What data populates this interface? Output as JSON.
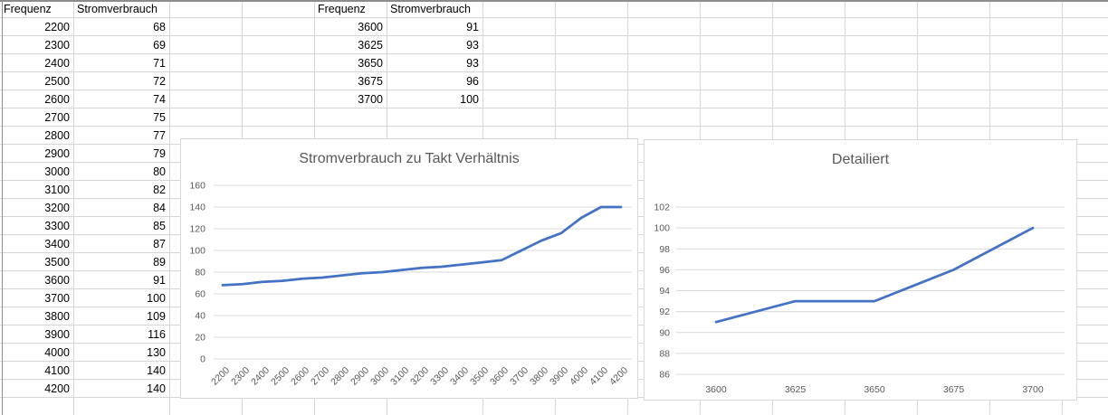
{
  "sheet": {
    "tables": [
      {
        "headers": [
          "Frequenz",
          "Stromverbrauch"
        ],
        "rows": [
          [
            2200,
            68
          ],
          [
            2300,
            69
          ],
          [
            2400,
            71
          ],
          [
            2500,
            72
          ],
          [
            2600,
            74
          ],
          [
            2700,
            75
          ],
          [
            2800,
            77
          ],
          [
            2900,
            79
          ],
          [
            3000,
            80
          ],
          [
            3100,
            82
          ],
          [
            3200,
            84
          ],
          [
            3300,
            85
          ],
          [
            3400,
            87
          ],
          [
            3500,
            89
          ],
          [
            3600,
            91
          ],
          [
            3700,
            100
          ],
          [
            3800,
            109
          ],
          [
            3900,
            116
          ],
          [
            4000,
            130
          ],
          [
            4100,
            140
          ],
          [
            4200,
            140
          ]
        ]
      },
      {
        "headers": [
          "Frequenz",
          "Stromverbrauch"
        ],
        "rows": [
          [
            3600,
            91
          ],
          [
            3625,
            93
          ],
          [
            3650,
            93
          ],
          [
            3675,
            96
          ],
          [
            3700,
            100
          ]
        ]
      }
    ]
  },
  "chart_data": [
    {
      "type": "line",
      "title": "Stromverbrauch zu Takt Verhältnis",
      "x": [
        2200,
        2300,
        2400,
        2500,
        2600,
        2700,
        2800,
        2900,
        3000,
        3100,
        3200,
        3300,
        3400,
        3500,
        3600,
        3700,
        3800,
        3900,
        4000,
        4100,
        4200
      ],
      "values": [
        68,
        69,
        71,
        72,
        74,
        75,
        77,
        79,
        80,
        82,
        84,
        85,
        87,
        89,
        91,
        100,
        109,
        116,
        130,
        140,
        140
      ],
      "xlabel": "",
      "ylabel": "",
      "ylim": [
        0,
        160
      ],
      "ytick": 20,
      "grid": true,
      "legend": "none",
      "line_color": "#4472C4",
      "x_labels_rotated": true
    },
    {
      "type": "line",
      "title": "Detailiert",
      "x": [
        3600,
        3625,
        3650,
        3675,
        3700
      ],
      "values": [
        91,
        93,
        93,
        96,
        100
      ],
      "xlabel": "",
      "ylabel": "",
      "ylim": [
        86,
        102
      ],
      "ytick": 2,
      "grid": true,
      "legend": "none",
      "line_color": "#4472C4",
      "x_labels_rotated": false
    }
  ],
  "colors": {
    "accent": "#4472C4",
    "sheet_gridline": "#d6d6d6",
    "chart_gridline": "#d9d9d9",
    "chart_text": "#595959",
    "sheet_border": "#8c8c8c"
  }
}
